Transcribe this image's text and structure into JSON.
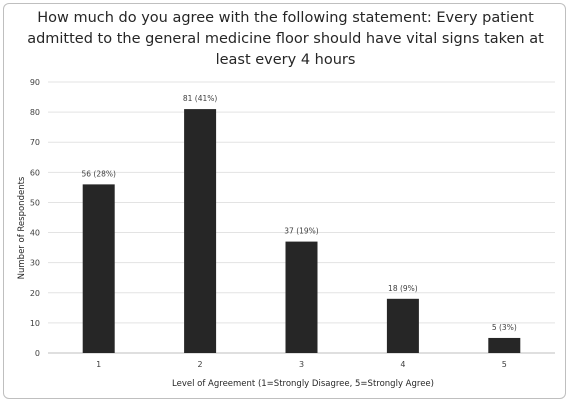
{
  "chart_data": {
    "type": "bar",
    "title": "How much do you agree with the following statement: Every patient admitted to the general medicine floor should have vital signs taken at least every 4 hours",
    "xlabel": "Level of Agreement (1=Strongly Disagree, 5=Strongly Agree)",
    "ylabel": "Number of Respondents",
    "categories": [
      "1",
      "2",
      "3",
      "4",
      "5"
    ],
    "values": [
      56,
      81,
      37,
      18,
      5
    ],
    "data_labels": [
      "56 (28%)",
      "81 (41%)",
      "37 (19%)",
      "18 (9%)",
      "5 (3%)"
    ],
    "yticks": [
      "0",
      "10",
      "20",
      "30",
      "40",
      "50",
      "60",
      "70",
      "80",
      "90"
    ],
    "ylim": [
      0,
      90
    ],
    "grid": true,
    "bar_color": "#262626"
  }
}
